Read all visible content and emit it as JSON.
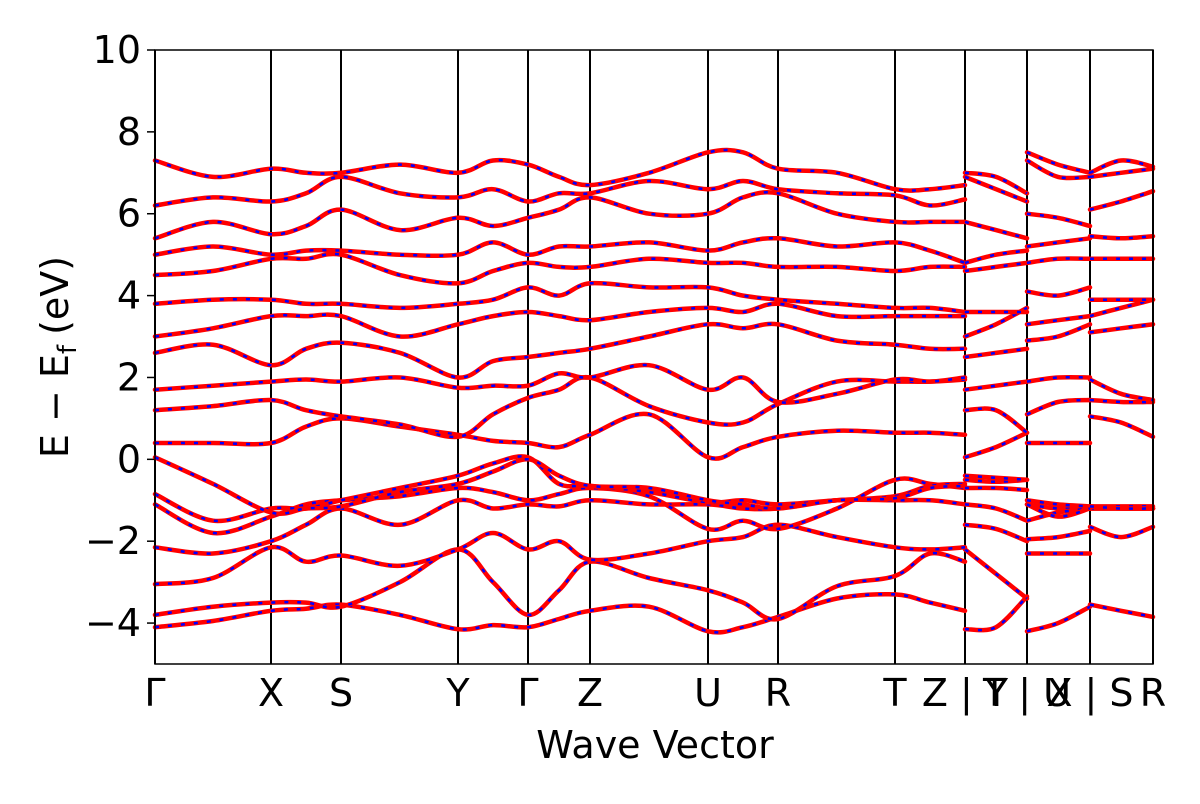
{
  "chart_data": {
    "type": "band",
    "xlabel": "Wave Vector",
    "ylabel": {
      "main": "E − E",
      "sub": "f",
      "unit": "(eV)"
    },
    "xlim": [
      0,
      9.98
    ],
    "ylim": [
      -5,
      10
    ],
    "yticks": [
      {
        "value": -4,
        "label": "−4"
      },
      {
        "value": -2,
        "label": "−2"
      },
      0,
      2,
      4,
      6,
      8,
      10
    ],
    "xticks": [
      {
        "value": 0,
        "label": "Γ"
      },
      {
        "value": 1.16,
        "label": "X"
      },
      {
        "value": 1.86,
        "label": "S"
      },
      {
        "value": 3.03,
        "label": "Y"
      },
      {
        "value": 3.73,
        "label": "Γ"
      },
      {
        "value": 4.35,
        "label": "Z"
      },
      {
        "value": 5.53,
        "label": "U"
      },
      {
        "value": 6.23,
        "label": "R"
      },
      {
        "value": 7.4,
        "label": "T"
      },
      {
        "value": 8.1,
        "label": "Z | Y"
      },
      {
        "value": 8.72,
        "label": "T | U"
      },
      {
        "value": 9.35,
        "label": "X | S"
      },
      {
        "value": 9.98,
        "label": "R"
      }
    ],
    "line_color": "#ff0000",
    "dash_color": "#0000ff",
    "x": [
      0,
      0.58,
      1.16,
      1.51,
      1.86,
      2.45,
      3.03,
      3.38,
      3.73,
      4.04,
      4.35,
      4.94,
      5.53,
      5.88,
      6.23,
      6.82,
      7.4,
      7.75,
      8.1,
      8.1,
      8.1,
      8.41,
      8.72,
      8.72,
      8.72,
      9.03,
      9.35,
      9.35,
      9.35,
      9.66,
      9.98
    ],
    "bands": [
      [
        -4.1,
        -3.95,
        -3.7,
        -3.65,
        -3.55,
        -3.8,
        -4.15,
        -4.05,
        -4.1,
        -3.9,
        -3.7,
        -3.6,
        -4.2,
        -4.1,
        -3.85,
        -3.4,
        -3.3,
        -3.5,
        -3.7,
        null,
        -4.15,
        -4.1,
        -3.35,
        null,
        -4.2,
        -4.0,
        -3.6,
        null,
        -3.55,
        -3.7,
        -3.85
      ],
      [
        -3.8,
        -3.6,
        -3.5,
        -3.5,
        -3.6,
        -3.0,
        -2.2,
        -3.0,
        -3.8,
        -3.2,
        -2.5,
        -2.9,
        -3.2,
        -3.5,
        -3.9,
        -3.1,
        -2.85,
        -2.3,
        -2.5,
        null,
        -2.2,
        -2.8,
        -3.4,
        null,
        -2.3,
        -2.3,
        -2.3,
        null,
        -1.65,
        -1.9,
        -1.65
      ],
      [
        -3.05,
        -2.9,
        -2.15,
        -2.5,
        -2.35,
        -2.6,
        -2.2,
        -1.8,
        -2.2,
        -2.0,
        -2.45,
        -2.3,
        -2.0,
        -1.9,
        -1.6,
        -1.9,
        -2.15,
        -2.2,
        -2.15,
        null,
        -1.6,
        -1.7,
        -2.0,
        null,
        -1.95,
        -1.9,
        -1.75,
        null,
        -1.2,
        -1.2,
        -1.2
      ],
      [
        -2.15,
        -2.3,
        -2.0,
        -1.6,
        -1.2,
        -1.6,
        -1.0,
        -1.2,
        -1.1,
        -1.15,
        -1.0,
        -1.1,
        -1.1,
        -1.2,
        -1.2,
        -1.0,
        -1.0,
        -1.0,
        -1.1,
        null,
        -1.1,
        -1.2,
        -1.5,
        null,
        -1.1,
        -1.2,
        -1.2,
        null,
        -1.2,
        -1.2,
        -1.2
      ],
      [
        -1.1,
        -1.8,
        -1.4,
        -1.1,
        -1.0,
        -0.9,
        -0.7,
        -0.8,
        -1.0,
        -0.85,
        -0.7,
        -0.9,
        -1.7,
        -1.5,
        -1.7,
        -1.2,
        -0.5,
        -0.6,
        -0.7,
        null,
        -0.5,
        -0.55,
        -0.5,
        null,
        -1.5,
        -1.3,
        -1.2,
        null,
        -1.15,
        -1.15,
        -1.15
      ],
      [
        -0.85,
        -1.5,
        -1.2,
        -1.2,
        -1.0,
        -0.7,
        -0.4,
        -0.1,
        0.05,
        -0.6,
        -0.65,
        -0.8,
        -1.05,
        -1.0,
        -1.1,
        -1.0,
        -0.9,
        -0.65,
        -0.6,
        null,
        -0.4,
        -0.45,
        -0.5,
        null,
        -1.0,
        -1.1,
        -1.15,
        null,
        -1.2,
        -1.2,
        -1.2
      ],
      [
        0.05,
        -0.6,
        -1.3,
        -1.2,
        -1.15,
        -0.8,
        -0.6,
        -0.3,
        0.0,
        -0.4,
        -0.65,
        -0.7,
        -1.0,
        -1.1,
        -1.2,
        -1.0,
        -0.95,
        -0.7,
        -0.65,
        null,
        -0.7,
        -0.7,
        -0.75,
        null,
        -1.1,
        -1.4,
        -1.2,
        null,
        -1.15,
        -1.2,
        -1.2
      ],
      [
        0.4,
        0.4,
        0.4,
        0.8,
        1.0,
        0.8,
        0.6,
        0.45,
        0.4,
        0.3,
        0.6,
        1.1,
        0.05,
        0.3,
        0.55,
        0.7,
        0.65,
        0.65,
        0.6,
        null,
        0.05,
        0.3,
        0.65,
        null,
        0.4,
        0.4,
        0.4,
        null,
        1.05,
        0.9,
        0.55
      ],
      [
        1.2,
        1.3,
        1.45,
        1.2,
        1.05,
        0.85,
        0.55,
        1.1,
        1.5,
        1.7,
        2.0,
        1.3,
        0.9,
        0.9,
        1.35,
        1.9,
        1.9,
        1.9,
        1.95,
        null,
        1.2,
        1.2,
        0.65,
        null,
        1.1,
        1.4,
        1.45,
        null,
        1.45,
        1.4,
        1.4
      ],
      [
        1.7,
        1.8,
        1.9,
        1.95,
        1.9,
        2.0,
        1.75,
        1.8,
        1.8,
        2.1,
        2.0,
        2.3,
        1.7,
        2.0,
        1.4,
        1.6,
        1.95,
        1.9,
        2.0,
        null,
        1.7,
        1.8,
        1.9,
        null,
        1.9,
        2.0,
        2.0,
        null,
        1.95,
        1.6,
        1.45
      ],
      [
        2.6,
        2.8,
        2.3,
        2.7,
        2.85,
        2.6,
        2.0,
        2.4,
        2.5,
        2.6,
        2.7,
        3.0,
        3.3,
        3.2,
        3.3,
        2.9,
        2.8,
        2.7,
        2.7,
        null,
        2.5,
        2.6,
        2.7,
        null,
        2.9,
        3.0,
        3.3,
        null,
        3.1,
        3.2,
        3.3
      ],
      [
        3.0,
        3.2,
        3.5,
        3.5,
        3.5,
        3.0,
        3.3,
        3.5,
        3.6,
        3.5,
        3.4,
        3.6,
        3.7,
        3.6,
        3.8,
        3.5,
        3.5,
        3.5,
        3.5,
        null,
        3.0,
        3.3,
        3.7,
        null,
        3.3,
        3.4,
        3.5,
        null,
        3.5,
        3.7,
        3.9
      ],
      [
        3.8,
        3.9,
        3.9,
        3.8,
        3.8,
        3.7,
        3.8,
        3.9,
        4.2,
        4.0,
        4.3,
        4.2,
        4.2,
        4.0,
        3.9,
        3.8,
        3.7,
        3.7,
        3.6,
        null,
        3.6,
        3.6,
        3.6,
        null,
        4.1,
        4.0,
        4.2,
        null,
        3.9,
        3.9,
        3.9
      ],
      [
        4.5,
        4.6,
        4.9,
        4.9,
        5.0,
        4.5,
        4.3,
        4.6,
        4.8,
        4.7,
        4.7,
        4.9,
        4.8,
        4.8,
        4.7,
        4.7,
        4.6,
        4.7,
        4.7,
        null,
        4.6,
        4.7,
        4.8,
        null,
        4.8,
        4.9,
        4.9,
        null,
        4.9,
        4.9,
        4.9
      ],
      [
        5.0,
        5.2,
        5.0,
        5.1,
        5.1,
        5.0,
        5.0,
        5.3,
        5.0,
        5.2,
        5.2,
        5.3,
        5.1,
        5.3,
        5.4,
        5.2,
        5.3,
        5.1,
        4.8,
        null,
        4.8,
        5.0,
        5.1,
        null,
        5.2,
        5.3,
        5.4,
        null,
        5.45,
        5.4,
        5.45
      ],
      [
        5.4,
        5.8,
        5.5,
        5.7,
        6.1,
        5.6,
        5.9,
        5.7,
        5.9,
        6.1,
        6.4,
        6.0,
        6.0,
        6.4,
        6.5,
        6.0,
        5.8,
        5.8,
        5.8,
        null,
        5.8,
        5.6,
        5.4,
        null,
        6.0,
        5.9,
        5.7,
        null,
        6.1,
        6.3,
        6.55
      ],
      [
        6.2,
        6.4,
        6.3,
        6.5,
        6.9,
        6.5,
        6.4,
        6.6,
        6.3,
        6.5,
        6.5,
        6.8,
        6.6,
        6.8,
        6.6,
        6.5,
        6.45,
        6.2,
        6.35,
        null,
        6.9,
        6.6,
        6.3,
        null,
        7.3,
        6.9,
        6.9,
        null,
        6.9,
        7.0,
        7.1
      ],
      [
        7.3,
        6.9,
        7.1,
        7.0,
        7.0,
        7.2,
        7.0,
        7.3,
        7.2,
        6.9,
        6.7,
        7.0,
        7.5,
        7.5,
        7.1,
        7.0,
        6.6,
        6.6,
        6.7,
        null,
        7.0,
        6.9,
        6.5,
        null,
        7.5,
        7.2,
        7.0,
        null,
        7.0,
        7.3,
        7.15
      ]
    ]
  }
}
